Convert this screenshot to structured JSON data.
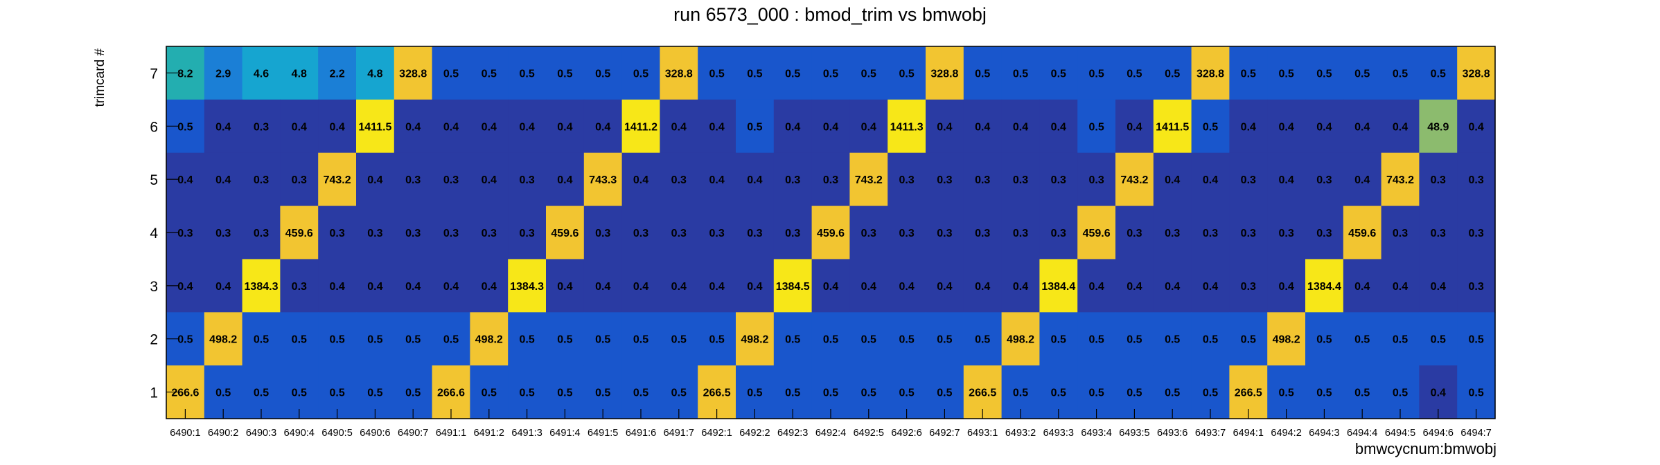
{
  "chart_data": {
    "type": "heatmap",
    "title": "run 6573_000 : bmod_trim vs bmwobj",
    "xlabel": "bmwcycnum:bmwobj",
    "ylabel": "trimcard #",
    "categories": [
      "6490:1",
      "6490:2",
      "6490:3",
      "6490:4",
      "6490:5",
      "6490:6",
      "6490:7",
      "6491:1",
      "6491:2",
      "6491:3",
      "6491:4",
      "6491:5",
      "6491:6",
      "6491:7",
      "6492:1",
      "6492:2",
      "6492:3",
      "6492:4",
      "6492:5",
      "6492:6",
      "6492:7",
      "6493:1",
      "6493:2",
      "6493:3",
      "6493:4",
      "6493:5",
      "6493:6",
      "6493:7",
      "6494:1",
      "6494:2",
      "6494:3",
      "6494:4",
      "6494:5",
      "6494:6",
      "6494:7"
    ],
    "y_categories": [
      "1",
      "2",
      "3",
      "4",
      "5",
      "6",
      "7"
    ],
    "rows": [
      {
        "y": "7",
        "values": [
          "8.2",
          "2.9",
          "4.6",
          "4.8",
          "2.2",
          "4.8",
          "328.8",
          "0.5",
          "0.5",
          "0.5",
          "0.5",
          "0.5",
          "0.5",
          "328.8",
          "0.5",
          "0.5",
          "0.5",
          "0.5",
          "0.5",
          "0.5",
          "328.8",
          "0.5",
          "0.5",
          "0.5",
          "0.5",
          "0.5",
          "0.5",
          "328.8",
          "0.5",
          "0.5",
          "0.5",
          "0.5",
          "0.5",
          "0.5",
          "328.8"
        ]
      },
      {
        "y": "6",
        "values": [
          "0.5",
          "0.4",
          "0.3",
          "0.4",
          "0.4",
          "1411.5",
          "0.4",
          "0.4",
          "0.4",
          "0.4",
          "0.4",
          "0.4",
          "1411.2",
          "0.4",
          "0.4",
          "0.5",
          "0.4",
          "0.4",
          "0.4",
          "1411.3",
          "0.4",
          "0.4",
          "0.4",
          "0.4",
          "0.5",
          "0.4",
          "1411.5",
          "0.5",
          "0.4",
          "0.4",
          "0.4",
          "0.4",
          "0.4",
          "48.9",
          "0.4"
        ]
      },
      {
        "y": "5",
        "values": [
          "0.4",
          "0.4",
          "0.3",
          "0.3",
          "743.2",
          "0.4",
          "0.3",
          "0.3",
          "0.4",
          "0.3",
          "0.4",
          "743.3",
          "0.4",
          "0.3",
          "0.4",
          "0.4",
          "0.3",
          "0.3",
          "743.2",
          "0.3",
          "0.3",
          "0.3",
          "0.3",
          "0.3",
          "0.3",
          "743.2",
          "0.4",
          "0.4",
          "0.3",
          "0.4",
          "0.3",
          "0.4",
          "743.2",
          "0.3",
          "0.3"
        ]
      },
      {
        "y": "4",
        "values": [
          "0.3",
          "0.3",
          "0.3",
          "459.6",
          "0.3",
          "0.3",
          "0.3",
          "0.3",
          "0.3",
          "0.3",
          "459.6",
          "0.3",
          "0.3",
          "0.3",
          "0.3",
          "0.3",
          "0.3",
          "459.6",
          "0.3",
          "0.3",
          "0.3",
          "0.3",
          "0.3",
          "0.3",
          "459.6",
          "0.3",
          "0.3",
          "0.3",
          "0.3",
          "0.3",
          "0.3",
          "459.6",
          "0.3",
          "0.3",
          "0.3"
        ]
      },
      {
        "y": "3",
        "values": [
          "0.4",
          "0.4",
          "1384.3",
          "0.3",
          "0.4",
          "0.4",
          "0.4",
          "0.4",
          "0.4",
          "1384.3",
          "0.4",
          "0.4",
          "0.4",
          "0.4",
          "0.4",
          "0.4",
          "1384.5",
          "0.4",
          "0.4",
          "0.4",
          "0.4",
          "0.4",
          "0.4",
          "1384.4",
          "0.4",
          "0.4",
          "0.4",
          "0.4",
          "0.3",
          "0.4",
          "1384.4",
          "0.4",
          "0.4",
          "0.4",
          "0.3"
        ]
      },
      {
        "y": "2",
        "values": [
          "0.5",
          "498.2",
          "0.5",
          "0.5",
          "0.5",
          "0.5",
          "0.5",
          "0.5",
          "498.2",
          "0.5",
          "0.5",
          "0.5",
          "0.5",
          "0.5",
          "0.5",
          "498.2",
          "0.5",
          "0.5",
          "0.5",
          "0.5",
          "0.5",
          "0.5",
          "498.2",
          "0.5",
          "0.5",
          "0.5",
          "0.5",
          "0.5",
          "0.5",
          "498.2",
          "0.5",
          "0.5",
          "0.5",
          "0.5",
          "0.5"
        ]
      },
      {
        "y": "1",
        "values": [
          "266.6",
          "0.5",
          "0.5",
          "0.5",
          "0.5",
          "0.5",
          "0.5",
          "266.6",
          "0.5",
          "0.5",
          "0.5",
          "0.5",
          "0.5",
          "0.5",
          "266.5",
          "0.5",
          "0.5",
          "0.5",
          "0.5",
          "0.5",
          "0.5",
          "266.5",
          "0.5",
          "0.5",
          "0.5",
          "0.5",
          "0.5",
          "0.5",
          "266.5",
          "0.5",
          "0.5",
          "0.5",
          "0.5",
          "0.4",
          "0.5"
        ]
      }
    ],
    "colors": {
      "low": "#2a3ba3",
      "mid": "#1956cc",
      "cyan": "#16a5d0",
      "teal": "#23aeb0",
      "green": "#8cbb6e",
      "orange": "#f2c531",
      "yellow": "#f7e718",
      "text": "#000000",
      "axis": "#000000"
    }
  }
}
